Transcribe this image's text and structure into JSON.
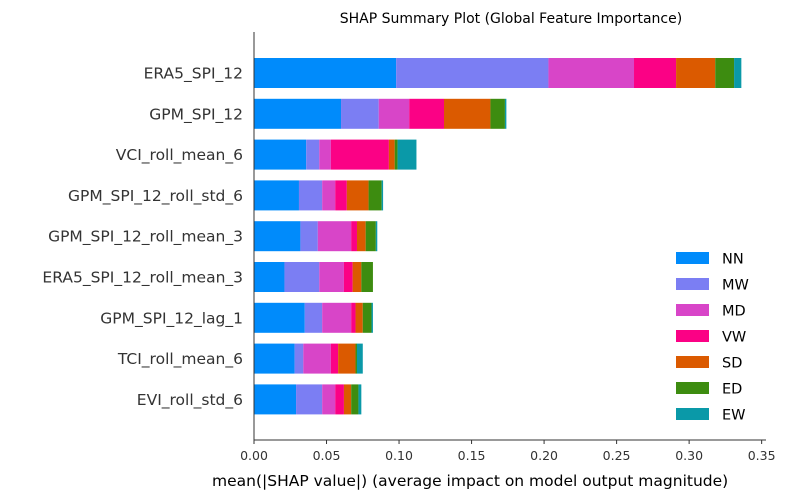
{
  "chart_data": {
    "type": "bar",
    "stacked": true,
    "orientation": "horizontal",
    "title": "SHAP Summary Plot (Global Feature Importance)",
    "xlabel": "mean(|SHAP value|) (average impact on model output magnitude)",
    "ylabel": "",
    "xlim": [
      0,
      0.353
    ],
    "xticks": [
      "0.00",
      "0.05",
      "0.10",
      "0.15",
      "0.20",
      "0.25",
      "0.30",
      "0.35"
    ],
    "grid": false,
    "legend_position": "lower-right",
    "categories": [
      "ERA5_SPI_12",
      "GPM_SPI_12",
      "VCI_roll_mean_6",
      "GPM_SPI_12_roll_std_6",
      "GPM_SPI_12_roll_mean_3",
      "ERA5_SPI_12_roll_mean_3",
      "GPM_SPI_12_lag_1",
      "TCI_roll_mean_6",
      "EVI_roll_std_6"
    ],
    "series": [
      {
        "name": "NN",
        "color": "#008bfb",
        "values": [
          0.098,
          0.06,
          0.036,
          0.031,
          0.032,
          0.021,
          0.035,
          0.028,
          0.029
        ]
      },
      {
        "name": "MW",
        "color": "#7b7ef3",
        "values": [
          0.105,
          0.026,
          0.009,
          0.016,
          0.012,
          0.024,
          0.012,
          0.006,
          0.018
        ]
      },
      {
        "name": "MD",
        "color": "#d845c8",
        "values": [
          0.059,
          0.021,
          0.008,
          0.009,
          0.023,
          0.017,
          0.02,
          0.019,
          0.009
        ]
      },
      {
        "name": "VW",
        "color": "#fb0185",
        "values": [
          0.029,
          0.024,
          0.04,
          0.008,
          0.004,
          0.006,
          0.003,
          0.005,
          0.006
        ]
      },
      {
        "name": "SD",
        "color": "#db5a00",
        "values": [
          0.027,
          0.032,
          0.004,
          0.015,
          0.006,
          0.006,
          0.005,
          0.012,
          0.005
        ]
      },
      {
        "name": "ED",
        "color": "#3d8c10",
        "values": [
          0.013,
          0.01,
          0.002,
          0.009,
          0.007,
          0.008,
          0.006,
          0.001,
          0.005
        ]
      },
      {
        "name": "EW",
        "color": "#0a99a8",
        "values": [
          0.005,
          0.001,
          0.013,
          0.001,
          0.001,
          0.0,
          0.001,
          0.004,
          0.002
        ]
      }
    ]
  }
}
